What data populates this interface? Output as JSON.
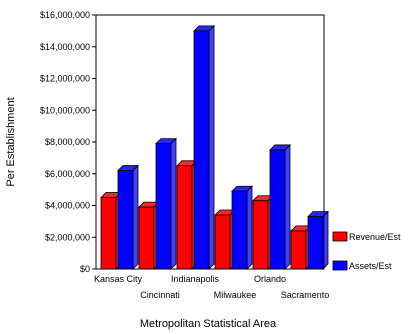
{
  "chart_data": {
    "type": "bar",
    "title": "",
    "xlabel": "Metropolitan Statistical Area",
    "ylabel": "Per Establishment",
    "ylim": [
      0,
      16000000
    ],
    "yticks": [
      0,
      2000000,
      4000000,
      6000000,
      8000000,
      10000000,
      12000000,
      14000000,
      16000000
    ],
    "ytick_labels": [
      "$0",
      "$2,000,000",
      "$4,000,000",
      "$6,000,000",
      "$8,000,000",
      "$10,000,000",
      "$12,000,000",
      "$14,000,000",
      "$16,000,000"
    ],
    "grid": false,
    "bar_style": "3d",
    "legend_position": "right",
    "categories": [
      "Kansas City",
      "Cincinnati",
      "Indianapolis",
      "Milwaukee",
      "Orlando",
      "Sacramento"
    ],
    "series": [
      {
        "name": "Revenue/Est",
        "color": "#ff0000",
        "values": [
          4500000,
          3900000,
          6500000,
          3400000,
          4300000,
          2400000
        ]
      },
      {
        "name": "Assets/Est",
        "color": "#0000ff",
        "values": [
          6200000,
          7900000,
          15000000,
          4900000,
          7500000,
          3300000
        ]
      }
    ]
  }
}
